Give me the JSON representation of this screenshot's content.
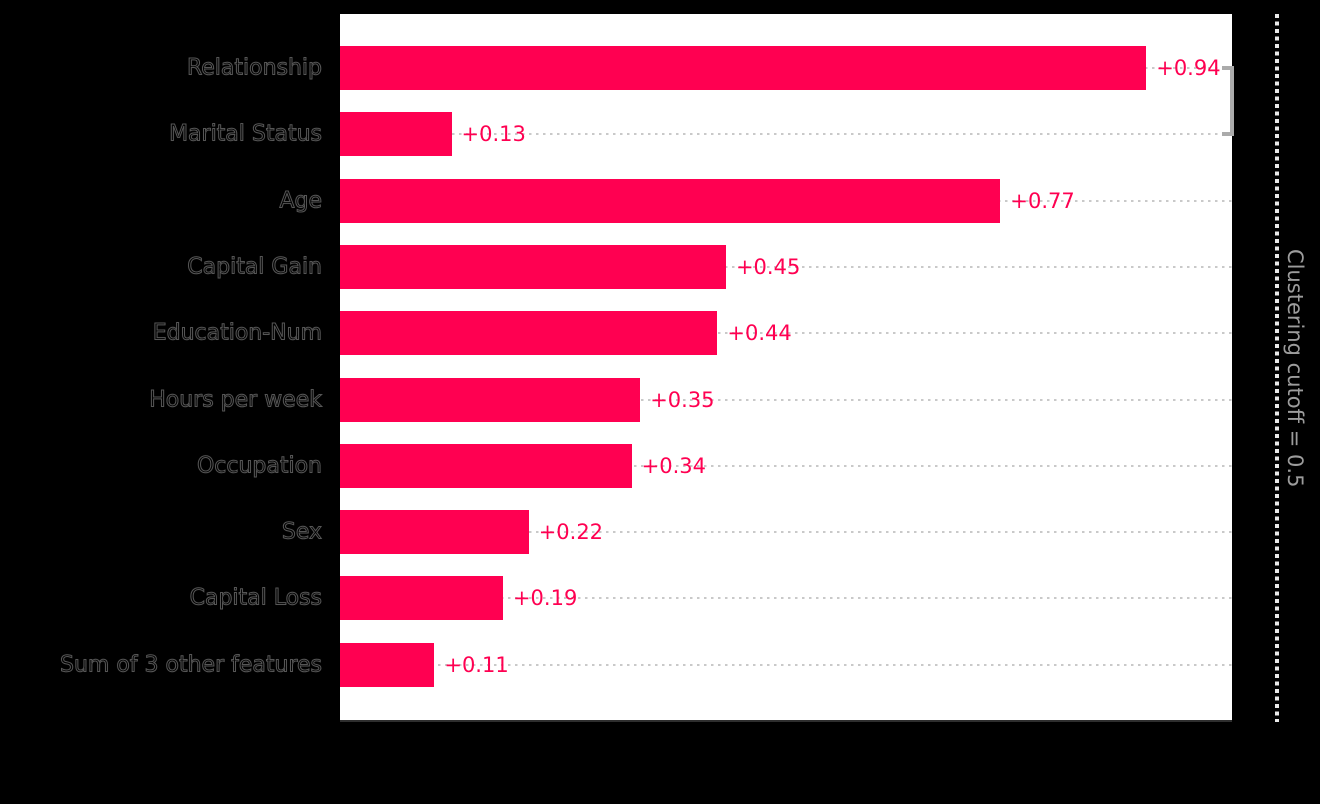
{
  "chart_data": {
    "type": "bar",
    "orientation": "horizontal",
    "categories": [
      "Relationship",
      "Marital Status",
      "Age",
      "Capital Gain",
      "Education-Num",
      "Hours per week",
      "Occupation",
      "Sex",
      "Capital Loss",
      "Sum of 3 other features"
    ],
    "values": [
      0.94,
      0.13,
      0.77,
      0.45,
      0.44,
      0.35,
      0.34,
      0.22,
      0.19,
      0.11
    ],
    "value_labels": [
      "+0.94",
      "+0.13",
      "+0.77",
      "+0.45",
      "+0.44",
      "+0.35",
      "+0.34",
      "+0.22",
      "+0.19",
      "+0.11"
    ],
    "xlim": [
      0,
      1.04
    ],
    "grid": "dotted-horizontal",
    "legend": "none",
    "bar_color": "#ff0051",
    "value_label_color": "#ff0051",
    "background_color": "#000000",
    "plot_background_color": "#ffffff",
    "gridline_color": "#c9c9c9",
    "bracket_color": "#ababab",
    "cutoff_line_color": "#eaeaea",
    "cutoff_label_color": "#9c9c9c",
    "annotations": {
      "clustering_cutoff_label": "Clustering cutoff = 0.5",
      "clustering_bracket": {
        "from_category": "Relationship",
        "to_category": "Marital Status"
      }
    }
  }
}
